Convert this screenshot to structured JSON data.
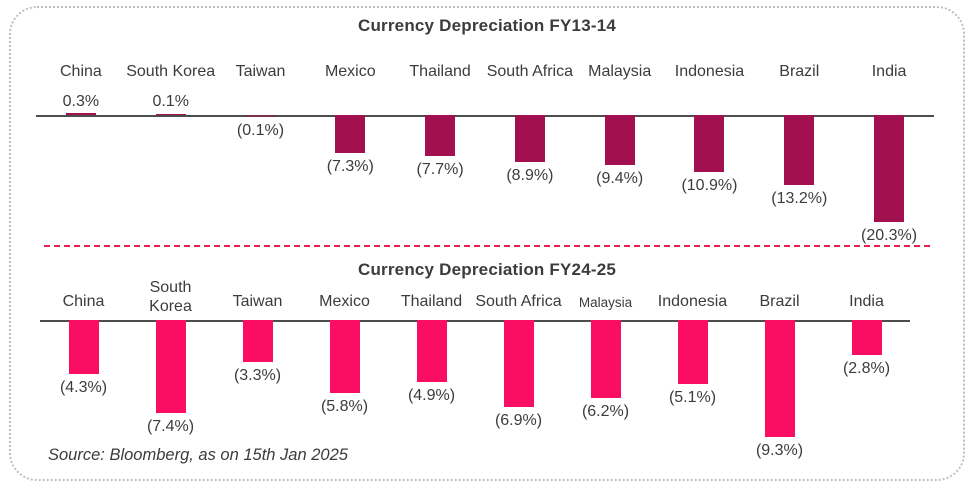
{
  "source_note": "Source: Bloomberg, as on 15th Jan 2025",
  "separator_color": "#E2224E",
  "axis_color": "#4D4D4D",
  "text_color": "#3C3C3B",
  "chart_data": [
    {
      "type": "bar",
      "title": "Currency Depreciation FY13-14",
      "bar_color": "#A3104F",
      "ylabel": "",
      "xlabel": "",
      "ylim": [
        -21,
        1
      ],
      "grid": false,
      "legend": "none",
      "categories": [
        "China",
        "South Korea",
        "Taiwan",
        "Mexico",
        "Thailand",
        "South Africa",
        "Malaysia",
        "Indonesia",
        "Brazil",
        "India"
      ],
      "values": [
        0.3,
        0.1,
        -0.1,
        -7.3,
        -7.7,
        -8.9,
        -9.4,
        -10.9,
        -13.2,
        -20.3
      ],
      "value_labels": [
        "0.3%",
        "0.1%",
        "(0.1%)",
        "(7.3%)",
        "(7.7%)",
        "(8.9%)",
        "(9.4%)",
        "(10.9%)",
        "(13.2%)",
        "(20.3%)"
      ],
      "small_labels": []
    },
    {
      "type": "bar",
      "title": "Currency Depreciation FY24-25",
      "bar_color": "#FA0E63",
      "ylabel": "",
      "xlabel": "",
      "ylim": [
        -10,
        0
      ],
      "grid": false,
      "legend": "none",
      "categories": [
        "China",
        "South Korea",
        "Taiwan",
        "Mexico",
        "Thailand",
        "South Africa",
        "Malaysia",
        "Indonesia",
        "Brazil",
        "India"
      ],
      "values": [
        -4.3,
        -7.4,
        -3.3,
        -5.8,
        -4.9,
        -6.9,
        -6.2,
        -5.1,
        -9.3,
        -2.8
      ],
      "value_labels": [
        "(4.3%)",
        "(7.4%)",
        "(3.3%)",
        "(5.8%)",
        "(4.9%)",
        "(6.9%)",
        "(6.2%)",
        "(5.1%)",
        "(9.3%)",
        "(2.8%)"
      ],
      "small_labels": [
        "Malaysia"
      ]
    }
  ]
}
